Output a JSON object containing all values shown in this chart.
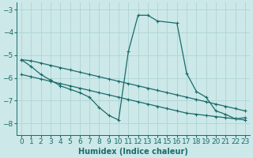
{
  "xlabel": "Humidex (Indice chaleur)",
  "bg_color": "#cce8e8",
  "grid_color": "#b0d4d4",
  "line_color": "#1a6b6b",
  "xlim": [
    -0.5,
    23.5
  ],
  "ylim": [
    -8.5,
    -2.7
  ],
  "xticks": [
    0,
    1,
    2,
    3,
    4,
    5,
    6,
    7,
    8,
    9,
    10,
    11,
    12,
    13,
    14,
    15,
    16,
    17,
    18,
    19,
    20,
    21,
    22,
    23
  ],
  "yticks": [
    -8,
    -7,
    -6,
    -5,
    -4,
    -3
  ],
  "line1_full_x": [
    0,
    1,
    2,
    3,
    4,
    5,
    6,
    7,
    8,
    9,
    10,
    11,
    12,
    13,
    14,
    15,
    16,
    17,
    18,
    19,
    20,
    21,
    22,
    23
  ],
  "line1_full_y": [
    -5.2,
    -5.25,
    -5.35,
    -5.45,
    -5.55,
    -5.65,
    -5.75,
    -5.85,
    -5.95,
    -6.05,
    -6.15,
    -6.25,
    -6.35,
    -6.45,
    -6.55,
    -6.65,
    -6.75,
    -6.85,
    -6.95,
    -7.05,
    -7.15,
    -7.25,
    -7.35,
    -7.45
  ],
  "line2_full_x": [
    0,
    1,
    2,
    3,
    4,
    5,
    6,
    7,
    8,
    9,
    10,
    11,
    12,
    13,
    14,
    15,
    16,
    17,
    18,
    19,
    20,
    21,
    22,
    23
  ],
  "line2_full_y": [
    -5.85,
    -5.95,
    -6.05,
    -6.15,
    -6.25,
    -6.35,
    -6.45,
    -6.55,
    -6.65,
    -6.75,
    -6.85,
    -6.95,
    -7.05,
    -7.15,
    -7.25,
    -7.35,
    -7.45,
    -7.55,
    -7.6,
    -7.65,
    -7.7,
    -7.75,
    -7.8,
    -7.85
  ],
  "line3_x": [
    0,
    1,
    2,
    3,
    4,
    5,
    6,
    7,
    8,
    9,
    10,
    11,
    12,
    13,
    14,
    16,
    17,
    18,
    19,
    20,
    21,
    22,
    23
  ],
  "line3_y": [
    -5.2,
    -5.5,
    -5.85,
    -6.1,
    -6.35,
    -6.5,
    -6.65,
    -6.85,
    -7.3,
    -7.65,
    -7.85,
    -4.85,
    -3.25,
    -3.25,
    -3.5,
    -3.6,
    -5.8,
    -6.6,
    -6.85,
    -7.45,
    -7.6,
    -7.8,
    -7.75
  ],
  "fontsize_label": 7,
  "fontsize_tick": 6.5
}
